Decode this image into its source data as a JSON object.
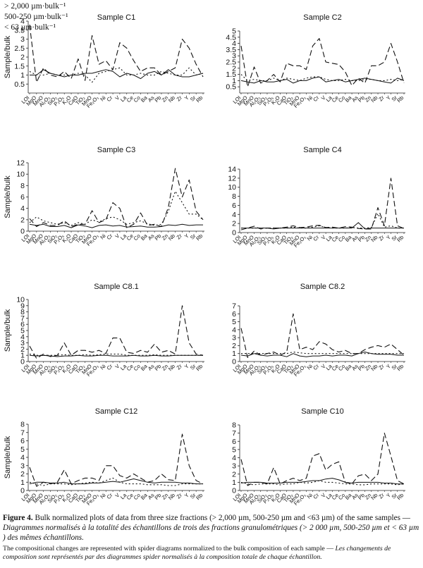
{
  "legend": {
    "items": [
      "> 2,000 µm·bulk⁻¹",
      "500-250 µm·bulk⁻¹",
      "< 63 µm·bulk⁻¹"
    ]
  },
  "caption": {
    "label": "Figure 4.",
    "text_en": "Bulk normalized plots of data from three size fractions (> 2,000 µm, 500-250 µm and <63 µm) of the same samples —",
    "text_fr": "Diagrammes normalisés à la totalité des échantillons de trois des fractions granulométriques (> 2 000 µm, 500-250 µm et < 63 µm ) des mêmes échantillons.",
    "note_en": "The compositional changes are represented with spider diagrams normalized to the bulk composition of each sample —",
    "note_fr": "Les changements de composition sont représentés par des diagrammes spider normalisés à la composition totale de chaque échantillon."
  },
  "chart_data": [
    {
      "type": "line",
      "title": "Sample C1",
      "ylabel": "Sample/bulk",
      "ylim": [
        0,
        4
      ],
      "yticks": [
        0.5,
        1,
        1.5,
        2,
        2.5,
        3,
        3.5,
        4
      ],
      "categories": [
        "LOI",
        "MgO",
        "MnO",
        "Al₂O₃",
        "SiO₂",
        "P₂O₅",
        "K₂O",
        "CaO",
        "TiO₂",
        "MnO",
        "Fe₂O₃",
        "Ni",
        "Cr",
        "V",
        "La",
        "Ce",
        "Co",
        "Ba",
        "As",
        "Pb",
        "Zn",
        "Nb",
        "Zr",
        "Y",
        "Sr",
        "Rb"
      ],
      "series": [
        {
          "values": [
            3.8,
            0.6,
            1.4,
            1.0,
            0.9,
            1.2,
            0.8,
            1.9,
            0.7,
            3.2,
            1.6,
            1.8,
            1.3,
            2.8,
            2.5,
            1.8,
            1.2,
            1.4,
            1.4,
            1.0,
            1.2,
            1.4,
            3.0,
            2.5,
            1.6,
            0.9
          ],
          "style": "dash"
        },
        {
          "values": [
            1.2,
            1.0,
            1.0,
            1.1,
            1.0,
            1.0,
            1.0,
            1.1,
            1.0,
            0.6,
            1.1,
            1.2,
            1.3,
            1.4,
            1.0,
            1.0,
            1.1,
            1.0,
            1.0,
            1.2,
            1.1,
            1.0,
            1.0,
            1.4,
            1.0,
            1.1
          ],
          "style": "dot"
        },
        {
          "values": [
            1.0,
            1.0,
            1.3,
            1.1,
            1.0,
            0.9,
            1.0,
            1.0,
            1.1,
            1.1,
            1.2,
            1.3,
            1.2,
            0.9,
            1.1,
            1.0,
            0.8,
            1.1,
            1.2,
            1.0,
            1.3,
            1.0,
            0.9,
            0.9,
            1.0,
            1.1
          ],
          "style": "solid"
        }
      ]
    },
    {
      "type": "line",
      "title": "Sample C2",
      "ylabel": "",
      "ylim": [
        0,
        5
      ],
      "yticks": [
        0.5,
        1,
        1.5,
        2,
        2.5,
        3,
        3.5,
        4,
        4.5,
        5
      ],
      "categories": [
        "LOI",
        "MgO",
        "MnO",
        "Al₂O₃",
        "SiO₂",
        "P₂O₅",
        "K₂O",
        "CaO",
        "TiO₂",
        "MnO",
        "Fe₂O₃",
        "Ni",
        "Cr",
        "V",
        "La",
        "Ce",
        "Co",
        "Ba",
        "As",
        "Pb",
        "Zn",
        "Nb",
        "Zr",
        "Y",
        "Sr",
        "Rb"
      ],
      "series": [
        {
          "values": [
            3.8,
            0.5,
            2.1,
            0.8,
            1.0,
            1.5,
            0.9,
            2.4,
            2.2,
            2.2,
            1.9,
            3.8,
            4.4,
            2.5,
            2.4,
            2.3,
            1.7,
            0.6,
            1.2,
            0.8,
            2.2,
            2.2,
            2.5,
            4.0,
            2.5,
            0.8
          ],
          "style": "dash"
        },
        {
          "values": [
            1.5,
            1.0,
            1.1,
            1.0,
            1.0,
            1.2,
            1.0,
            1.2,
            1.1,
            1.0,
            1.2,
            1.3,
            1.3,
            1.1,
            1.0,
            1.0,
            1.1,
            1.0,
            1.0,
            1.1,
            1.1,
            1.0,
            1.0,
            1.1,
            1.0,
            1.1
          ],
          "style": "dot"
        },
        {
          "values": [
            1.0,
            0.9,
            0.8,
            1.0,
            0.9,
            0.9,
            1.0,
            1.1,
            0.8,
            1.0,
            1.0,
            1.2,
            1.3,
            0.9,
            1.0,
            1.1,
            0.9,
            1.0,
            1.1,
            1.2,
            1.1,
            1.0,
            0.9,
            0.8,
            1.2,
            1.0
          ],
          "style": "solid"
        }
      ]
    },
    {
      "type": "line",
      "title": "Sample C3",
      "ylabel": "Sample/bulk",
      "ylim": [
        0,
        12
      ],
      "yticks": [
        0,
        2,
        4,
        6,
        8,
        10,
        12
      ],
      "categories": [
        "LOI",
        "MgO",
        "MnO",
        "Al₂O₃",
        "SiO₂",
        "P₂O₅",
        "K₂O",
        "CaO",
        "TiO₂",
        "MnO",
        "Fe₂O₃",
        "Ni",
        "Cr",
        "V",
        "La",
        "Ce",
        "Co",
        "Ba",
        "As",
        "Pb",
        "Zn",
        "Nb",
        "Zr",
        "Y",
        "Sr",
        "Rb"
      ],
      "series": [
        {
          "values": [
            2.2,
            0.8,
            1.5,
            1.0,
            1.0,
            1.8,
            0.8,
            1.2,
            1.2,
            3.6,
            1.5,
            2.0,
            5.0,
            4.0,
            0.6,
            1.2,
            3.2,
            1.0,
            1.2,
            0.8,
            4.2,
            11.0,
            6.0,
            9.0,
            3.5,
            2.0
          ],
          "style": "dash"
        },
        {
          "values": [
            1.5,
            2.5,
            1.8,
            1.5,
            1.2,
            1.5,
            1.0,
            1.5,
            1.2,
            2.0,
            1.6,
            2.2,
            2.5,
            2.0,
            1.2,
            1.5,
            1.8,
            1.3,
            1.0,
            1.2,
            3.5,
            7.0,
            5.0,
            3.0,
            3.0,
            2.0
          ],
          "style": "dot"
        },
        {
          "values": [
            1.2,
            1.0,
            1.2,
            0.8,
            0.8,
            1.0,
            0.6,
            1.1,
            0.9,
            0.6,
            1.0,
            1.1,
            0.9,
            1.0,
            0.7,
            0.8,
            0.9,
            0.7,
            0.7,
            0.8,
            1.1,
            1.0,
            1.2,
            1.0,
            1.1,
            1.1
          ],
          "style": "solid"
        }
      ]
    },
    {
      "type": "line",
      "title": "Sample C4",
      "ylabel": "",
      "ylim": [
        0,
        14
      ],
      "yticks": [
        0,
        2,
        4,
        6,
        8,
        10,
        12,
        14
      ],
      "categories": [
        "LOI",
        "MgO",
        "MnO",
        "Al₂O₃",
        "SiO₂",
        "P₂O₅",
        "K₂O",
        "CaO",
        "TiO₂",
        "MnO",
        "Fe₂O₃",
        "Ni",
        "Cr",
        "V",
        "La",
        "Ce",
        "Co",
        "Ba",
        "As",
        "Pb",
        "Zn",
        "Nb",
        "Zr",
        "Y",
        "Sr",
        "Rb"
      ],
      "series": [
        {
          "values": [
            0.6,
            1.0,
            1.4,
            0.8,
            1.0,
            1.0,
            1.0,
            1.2,
            1.5,
            1.1,
            1.2,
            1.5,
            1.6,
            1.1,
            1.2,
            1.0,
            1.3,
            1.2,
            0.9,
            0.8,
            0.8,
            5.5,
            1.5,
            12.0,
            1.5,
            0.9
          ],
          "style": "dash"
        },
        {
          "values": [
            1.0,
            1.0,
            1.0,
            1.0,
            1.0,
            1.0,
            1.0,
            1.0,
            1.2,
            1.0,
            1.0,
            1.2,
            1.5,
            1.1,
            1.0,
            1.0,
            1.0,
            1.1,
            1.0,
            1.0,
            1.1,
            4.2,
            1.2,
            1.5,
            1.0,
            1.0
          ],
          "style": "dot"
        },
        {
          "values": [
            1.0,
            1.0,
            1.0,
            1.0,
            1.0,
            0.8,
            1.0,
            1.0,
            1.0,
            1.0,
            1.0,
            1.0,
            1.0,
            1.0,
            1.0,
            1.0,
            1.0,
            1.0,
            2.2,
            0.8,
            1.0,
            1.0,
            1.0,
            1.0,
            1.0,
            1.0
          ],
          "style": "solid"
        }
      ]
    },
    {
      "type": "line",
      "title": "Sample C8.1",
      "ylabel": "Sample/bulk",
      "ylim": [
        0,
        10
      ],
      "yticks": [
        0,
        1,
        2,
        3,
        4,
        5,
        6,
        7,
        8,
        9,
        10
      ],
      "categories": [
        "LOI",
        "MgO",
        "MnO",
        "Al₂O₃",
        "SiO₂",
        "P₂O₅",
        "K₂O",
        "CaO",
        "TiO₂",
        "MnO",
        "Fe₂O₃",
        "Ni",
        "Cr",
        "V",
        "La",
        "Ce",
        "Co",
        "Ba",
        "As",
        "Pb",
        "Zn",
        "Nb",
        "Zr",
        "Y",
        "Sr",
        "Rb"
      ],
      "series": [
        {
          "values": [
            2.5,
            0.5,
            1.2,
            0.8,
            1.0,
            3.0,
            1.0,
            1.8,
            1.8,
            1.5,
            1.8,
            1.3,
            3.8,
            3.8,
            1.5,
            1.3,
            1.8,
            1.5,
            2.8,
            1.5,
            1.8,
            1.2,
            9.0,
            3.0,
            1.2,
            1.0
          ],
          "style": "dash"
        },
        {
          "values": [
            1.2,
            1.0,
            1.0,
            1.0,
            1.0,
            1.1,
            1.0,
            1.0,
            1.1,
            1.0,
            1.1,
            1.2,
            1.2,
            1.2,
            1.0,
            1.0,
            1.0,
            1.0,
            1.1,
            1.0,
            1.0,
            1.0,
            1.0,
            1.0,
            1.0,
            1.0
          ],
          "style": "dot"
        },
        {
          "values": [
            1.0,
            0.9,
            1.0,
            0.9,
            0.8,
            0.9,
            0.9,
            1.0,
            0.9,
            0.9,
            1.0,
            1.0,
            0.9,
            0.9,
            0.9,
            1.0,
            0.9,
            0.9,
            1.0,
            0.9,
            0.9,
            1.0,
            1.0,
            1.0,
            1.0,
            1.0
          ],
          "style": "solid"
        }
      ]
    },
    {
      "type": "line",
      "title": "Sample C8.2",
      "ylabel": "",
      "ylim": [
        0,
        7
      ],
      "yticks": [
        0,
        1,
        2,
        3,
        4,
        5,
        6,
        7
      ],
      "categories": [
        "LOI",
        "MgO",
        "MnO",
        "Al₂O₃",
        "SiO₂",
        "P₂O₅",
        "K₂O",
        "CaO",
        "TiO₂",
        "MnO",
        "Fe₂O₃",
        "Ni",
        "Cr",
        "V",
        "La",
        "Ce",
        "Co",
        "Ba",
        "As",
        "Pb",
        "Zn",
        "Nb",
        "Zr",
        "Y",
        "Sr",
        "Rb"
      ],
      "series": [
        {
          "values": [
            4.2,
            0.5,
            1.3,
            0.8,
            1.0,
            1.2,
            0.8,
            1.2,
            6.0,
            1.5,
            1.8,
            1.5,
            2.5,
            2.2,
            1.5,
            1.2,
            1.4,
            1.0,
            1.0,
            1.5,
            1.8,
            2.0,
            1.8,
            2.2,
            1.5,
            0.8
          ],
          "style": "dash"
        },
        {
          "values": [
            1.0,
            1.0,
            1.0,
            1.0,
            1.0,
            1.0,
            1.0,
            1.0,
            1.2,
            1.1,
            1.0,
            1.0,
            1.0,
            1.0,
            1.0,
            1.0,
            1.0,
            1.0,
            1.0,
            1.0,
            1.0,
            1.0,
            1.0,
            1.0,
            1.0,
            1.0
          ],
          "style": "dot"
        },
        {
          "values": [
            0.8,
            0.7,
            1.0,
            0.8,
            0.7,
            0.8,
            0.8,
            0.6,
            1.0,
            0.7,
            0.6,
            0.7,
            0.7,
            0.8,
            0.7,
            0.8,
            0.8,
            0.7,
            1.0,
            1.2,
            1.0,
            0.9,
            0.9,
            0.9,
            0.8,
            0.8
          ],
          "style": "solid"
        }
      ]
    },
    {
      "type": "line",
      "title": "Sample C12",
      "ylabel": "Sample/bulk",
      "ylim": [
        0,
        8
      ],
      "yticks": [
        0,
        1,
        2,
        3,
        4,
        5,
        6,
        7,
        8
      ],
      "categories": [
        "LOI",
        "MgO",
        "MnO",
        "Al₂O₃",
        "SiO₂",
        "P₂O₅",
        "K₂O",
        "CaO",
        "TiO₂",
        "MnO",
        "Fe₂O₃",
        "Ni",
        "Cr",
        "V",
        "La",
        "Ce",
        "Co",
        "Ba",
        "As",
        "Pb",
        "Zn",
        "Nb",
        "Zr",
        "Y",
        "Sr",
        "Rb"
      ],
      "series": [
        {
          "values": [
            2.8,
            0.5,
            1.0,
            0.8,
            1.0,
            2.5,
            0.8,
            1.2,
            1.5,
            1.5,
            1.2,
            3.0,
            3.0,
            1.8,
            1.5,
            2.0,
            1.5,
            1.0,
            1.2,
            2.0,
            1.3,
            1.2,
            6.8,
            3.0,
            1.2,
            0.8
          ],
          "style": "dash"
        },
        {
          "values": [
            1.0,
            0.8,
            0.6,
            0.8,
            0.8,
            0.8,
            0.7,
            0.8,
            0.9,
            1.0,
            0.9,
            1.2,
            1.5,
            1.0,
            0.8,
            0.8,
            0.8,
            0.7,
            0.7,
            0.7,
            0.6,
            0.6,
            0.8,
            0.8,
            0.8,
            0.8
          ],
          "style": "dot"
        },
        {
          "values": [
            0.8,
            1.0,
            1.0,
            0.9,
            0.9,
            1.0,
            0.8,
            0.8,
            0.8,
            0.9,
            0.9,
            1.0,
            1.1,
            1.0,
            1.2,
            1.4,
            1.2,
            1.0,
            0.9,
            1.0,
            1.0,
            1.0,
            0.9,
            0.9,
            0.8,
            0.8
          ],
          "style": "solid"
        }
      ]
    },
    {
      "type": "line",
      "title": "Sample C10",
      "ylabel": "",
      "ylim": [
        0,
        8
      ],
      "yticks": [
        0,
        1,
        2,
        3,
        4,
        5,
        6,
        7,
        8
      ],
      "categories": [
        "LOI",
        "MgO",
        "MnO",
        "Al₂O₃",
        "SiO₂",
        "P₂O₅",
        "K₂O",
        "CaO",
        "TiO₂",
        "MnO",
        "Fe₂O₃",
        "Ni",
        "Cr",
        "V",
        "La",
        "Ce",
        "Co",
        "Ba",
        "As",
        "Pb",
        "Zn",
        "Nb",
        "Zr",
        "Y",
        "Sr",
        "Rb"
      ],
      "series": [
        {
          "values": [
            3.8,
            0.6,
            1.0,
            1.0,
            0.8,
            2.8,
            0.8,
            1.2,
            1.5,
            1.2,
            1.5,
            4.2,
            4.5,
            2.5,
            3.2,
            3.5,
            1.0,
            0.8,
            1.8,
            2.0,
            1.2,
            2.0,
            7.0,
            4.2,
            1.2,
            0.8
          ],
          "style": "dash"
        },
        {
          "values": [
            1.0,
            0.8,
            0.7,
            0.8,
            0.8,
            0.8,
            0.7,
            0.8,
            0.8,
            1.0,
            0.9,
            1.0,
            1.2,
            1.0,
            1.0,
            0.9,
            0.8,
            0.8,
            0.7,
            0.7,
            0.8,
            0.8,
            0.8,
            0.8,
            0.7,
            0.8
          ],
          "style": "dot"
        },
        {
          "values": [
            0.9,
            1.0,
            1.0,
            1.0,
            0.9,
            0.9,
            0.9,
            1.0,
            1.0,
            1.0,
            1.1,
            1.2,
            1.2,
            1.4,
            1.5,
            1.3,
            1.0,
            0.9,
            1.0,
            1.0,
            1.0,
            1.0,
            0.9,
            0.9,
            0.8,
            0.8
          ],
          "style": "solid"
        }
      ]
    }
  ]
}
